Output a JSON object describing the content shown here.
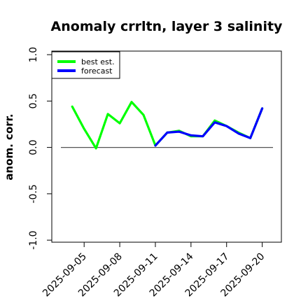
{
  "chart_data": {
    "type": "line",
    "title": "Anomaly crrltn, layer 3 salinity",
    "xlabel": "",
    "ylabel": "anom. corr.",
    "ylim": [
      -1.0,
      1.0
    ],
    "yticks": [
      "-1.0",
      "-0.5",
      "0.0",
      "0.5",
      "1.0"
    ],
    "xtick_labels": [
      "2025-09-05",
      "2025-09-08",
      "2025-09-11",
      "2025-09-14",
      "2025-09-17",
      "2025-09-20"
    ],
    "xtick_colors": [
      "#000000",
      "#000000",
      "#228B22",
      "#000000",
      "#000000",
      "#000000"
    ],
    "grid": false,
    "legend_position": "top-left",
    "reference_line": 0.0,
    "series": [
      {
        "name": "best est.",
        "color": "#00ff00",
        "x": [
          "2025-09-04",
          "2025-09-05",
          "2025-09-06",
          "2025-09-07",
          "2025-09-08",
          "2025-09-09",
          "2025-09-10",
          "2025-09-11",
          "2025-09-12",
          "2025-09-13",
          "2025-09-14",
          "2025-09-15",
          "2025-09-16",
          "2025-09-17",
          "2025-09-18",
          "2025-09-19",
          "2025-09-20"
        ],
        "values": [
          0.44,
          0.2,
          -0.01,
          0.36,
          0.26,
          0.49,
          0.35,
          0.02,
          0.16,
          0.18,
          0.12,
          0.12,
          0.29,
          0.23,
          0.16,
          0.1,
          0.42
        ]
      },
      {
        "name": "forecast",
        "color": "#0000ff",
        "x": [
          "2025-09-11",
          "2025-09-12",
          "2025-09-13",
          "2025-09-14",
          "2025-09-15",
          "2025-09-16",
          "2025-09-17",
          "2025-09-18",
          "2025-09-19",
          "2025-09-20"
        ],
        "values": [
          0.02,
          0.16,
          0.17,
          0.13,
          0.12,
          0.27,
          0.23,
          0.15,
          0.1,
          0.42
        ]
      }
    ]
  }
}
